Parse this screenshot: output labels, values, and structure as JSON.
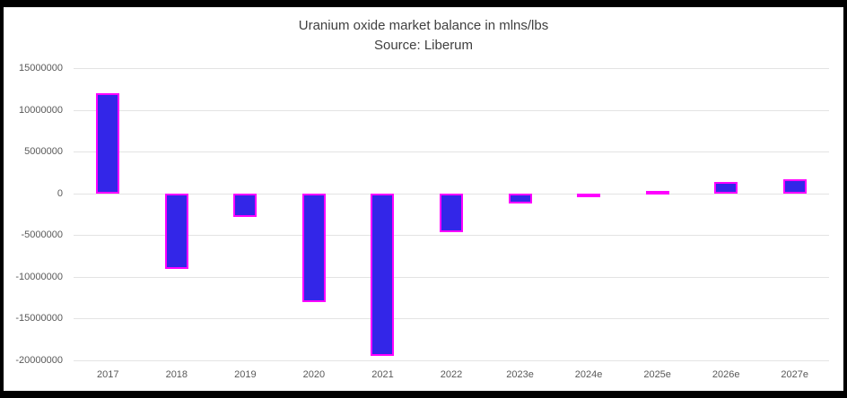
{
  "title": {
    "line1": "Uranium oxide market balance in mlns/lbs",
    "line2": "Source: Liberum"
  },
  "chart_data": {
    "type": "bar",
    "title": "Uranium oxide market balance in mlns/lbs",
    "subtitle": "Source: Liberum",
    "categories": [
      "2017",
      "2018",
      "2019",
      "2020",
      "2021",
      "2022",
      "2023e",
      "2024e",
      "2025e",
      "2026e",
      "2027e"
    ],
    "values": [
      12000000,
      -9000000,
      -2800000,
      -13000000,
      -19500000,
      -4600000,
      -1200000,
      -400000,
      300000,
      1400000,
      1700000
    ],
    "xlabel": "",
    "ylabel": "",
    "ylim": [
      -20000000,
      15000000
    ],
    "yticks": [
      15000000,
      10000000,
      5000000,
      0,
      -5000000,
      -10000000,
      -15000000,
      -20000000
    ],
    "ytick_labels": [
      "15000000",
      "10000000",
      "5000000",
      "0",
      "-5000000",
      "-10000000",
      "-15000000",
      "-20000000"
    ],
    "grid": true,
    "legend": "none",
    "bar_fill_color": "#3326e8",
    "bar_border_color": "#ff00ff"
  },
  "colors": {
    "frame_border": "#000000",
    "title_text": "#404040",
    "axis_text": "#595959",
    "gridline": "#e3e3e3",
    "background": "#ffffff"
  }
}
